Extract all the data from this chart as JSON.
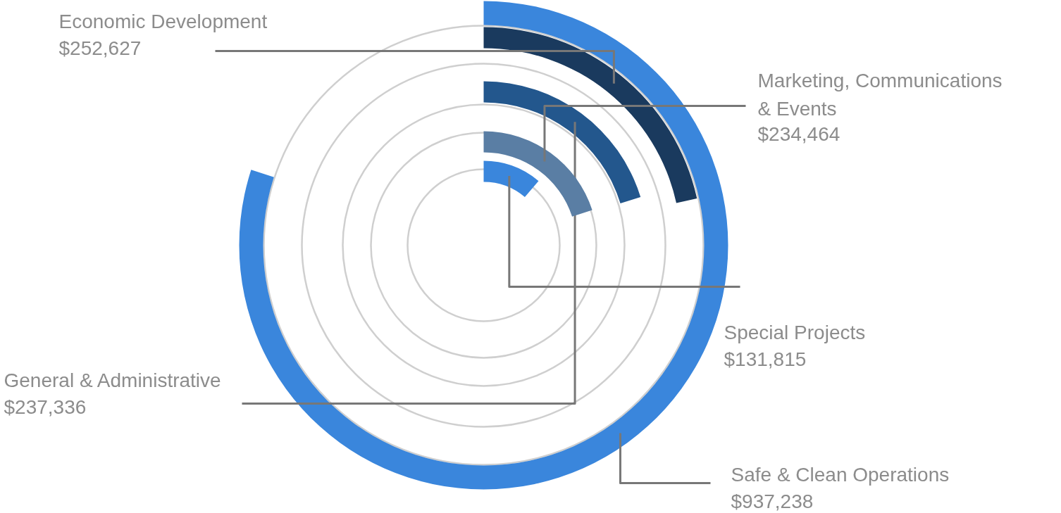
{
  "chart_data": {
    "type": "other",
    "categories": [
      "Safe & Clean Operations",
      "Economic Development",
      "General & Administrative",
      "Marketing, Communications\n& Events",
      "Special Projects"
    ],
    "values": [
      937238,
      252627,
      237336,
      234464,
      131815
    ],
    "value_labels": [
      "$937,238",
      "$252,627",
      "$237,336",
      "$234,464",
      "$131,815"
    ],
    "colors": [
      "#3a86dc",
      "#1a3a5e",
      "#23578d",
      "#5a7ea4",
      "#3a86dc"
    ]
  }
}
